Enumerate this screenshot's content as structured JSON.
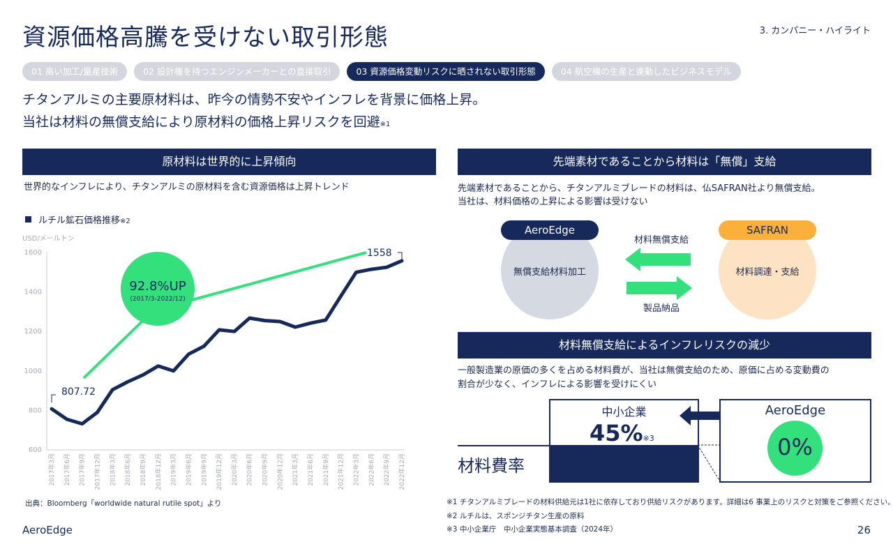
{
  "header": {
    "title": "資源価格高騰を受けない取引形態",
    "section": "3. カンパニー・ハイライト"
  },
  "tabs": [
    {
      "label": "01 高い加工/量産技術"
    },
    {
      "label": "02 設計権を持つエンジンメーカーとの直接取引"
    },
    {
      "label": "03 資源価格変動リスクに晒されない取引形態"
    },
    {
      "label": "04 航空機の生産と連動したビジネスモデル"
    }
  ],
  "lead": {
    "line1": "チタンアルミの主要原材料は、昨今の情勢不安やインフレを背景に価格上昇。",
    "line2": "当社は材料の無償支給により原材料の価格上昇リスクを回避",
    "line2_note": "※1"
  },
  "left": {
    "band": "原材料は世界的に上昇傾向",
    "desc": "世界的なインフレにより、チタンアルミの原材料を含む資源価格は上昇トレンド",
    "legend": "ルチル鉱石価格推移",
    "legend_note": "※2",
    "unit": "USD/メールトン",
    "callout_value": "92.8%UP",
    "callout_period": "(2017/3-2022/12)",
    "start_label": "807.72",
    "end_label": "1558",
    "source": "出典：Bloomberg「worldwide natural rutile spot」より"
  },
  "chart_data": {
    "type": "line",
    "title": "ルチル鉱石価格推移",
    "ylabel": "USD/メールトン",
    "ylim": [
      600,
      1600
    ],
    "yticks": [
      600,
      800,
      1000,
      1200,
      1400,
      1600
    ],
    "grid": false,
    "categories": [
      "2017年3月",
      "2017年6月",
      "2017年9月",
      "2017年12月",
      "2018年3月",
      "2018年6月",
      "2018年9月",
      "2018年12月",
      "2019年3月",
      "2019年6月",
      "2019年9月",
      "2019年12月",
      "2020年3月",
      "2020年6月",
      "2020年9月",
      "2020年12月",
      "2021年3月",
      "2021年6月",
      "2021年9月",
      "2021年12月",
      "2022年3月",
      "2022年6月",
      "2022年9月",
      "2022年12月"
    ],
    "tick_labels": [
      "2017年3月",
      "2017年6月",
      "2017年9月",
      "2017年12月",
      "2018年3月",
      "2018年6月",
      "2018年9月",
      "2018年12月",
      "2019年3月",
      "2019年6月",
      "2019年9月",
      "2019年12月",
      "2020年3月",
      "2020年6月",
      "2020年9月",
      "2020年12月",
      "2021年3月",
      "2021年6月",
      "2021年9月",
      "2021年12月",
      "2022年3月",
      "2022年6月",
      "2022年9月",
      "2022年12月"
    ],
    "series": [
      {
        "values": [
          807.72,
          755,
          732,
          790,
          905,
          945,
          980,
          1025,
          1000,
          1085,
          1125,
          1208,
          1200,
          1268,
          1255,
          1250,
          1222,
          1242,
          1258,
          1380,
          1500,
          1515,
          1525,
          1558
        ]
      }
    ],
    "color": "#16295a"
  },
  "right": {
    "band1": "先端素材であることから材料は「無償」支給",
    "desc1_line1": "先端素材であることから、チタンアルミブレードの材料は、仏SAFRAN社より無償支給。",
    "desc1_line2": "当社は、材料価格の上昇による影響は受けない",
    "aeroedge_pill": "AeroEdge",
    "aeroedge_circle": "無償支給材料加工",
    "safran_pill": "SAFRAN",
    "safran_circle": "材料調達・支給",
    "arrow_left_label": "材料無償支給",
    "arrow_right_label": "製品納品",
    "band2": "材料無償支給によるインフレリスクの減少",
    "desc2_line1": "一般製造業の原価の多くを占める材料費が、当社は無償支給のため、原価に占める変動費の",
    "desc2_line2": "割合が少なく、インフレによる影響を受けにくい",
    "sme_label": "中小企業",
    "sme_value": "45%",
    "sme_note": "※3",
    "material_cost_label": "材料費率",
    "aeroedge_label": "AeroEdge",
    "aeroedge_value": "0%",
    "note1": "※1 チタンアルミブレードの材料供給元は1社に依存しており供給リスクがあります。詳細は6 事業上のリスクと対策をご参照ください。",
    "note2": "※2 ルチルは、スポンジチタン生産の原料",
    "note3": "※3 中小企業庁　中小企業実態基本調査（2024年）"
  },
  "footer": {
    "brand": "AeroEdge",
    "page": "26"
  },
  "colors": {
    "navy": "#16295a",
    "green": "#34e07c",
    "green_light": "#8ff0b0",
    "orange": "#fbb03b",
    "orange_light": "#fde3c4",
    "grey_circle": "#d4d9e2",
    "tab_grey": "#d3d7dd"
  }
}
